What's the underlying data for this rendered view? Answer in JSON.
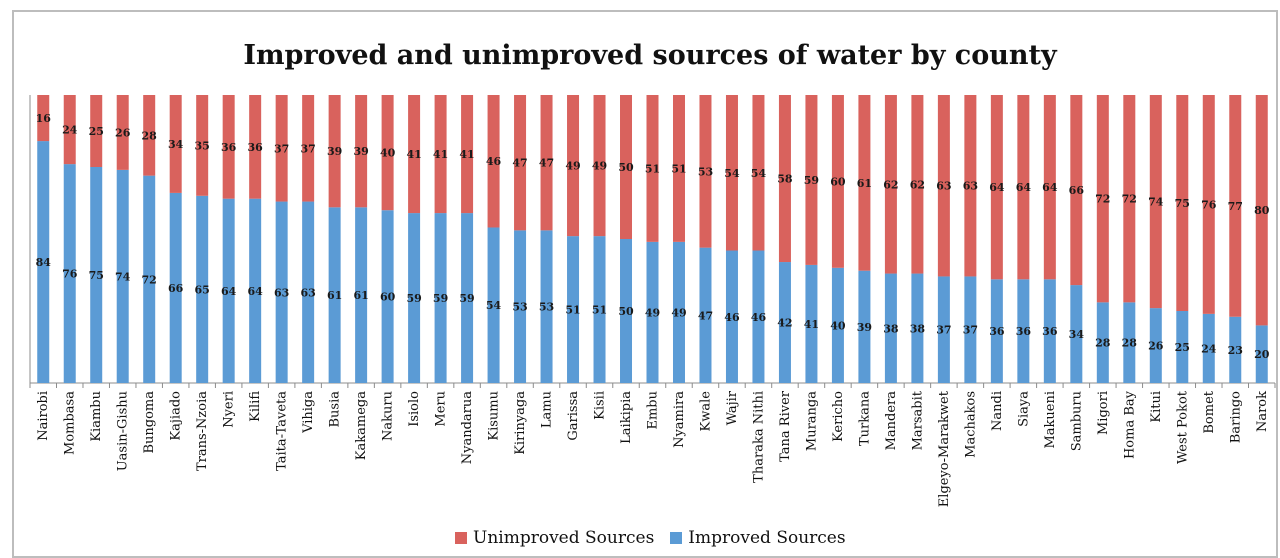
{
  "chart_data": {
    "type": "bar",
    "stacked": true,
    "title": "Improved and unimproved sources of water by county",
    "categories": [
      "Nairobi",
      "Mombasa",
      "Kiambu",
      "Uasin-Gishu",
      "Bungoma",
      "Kajiado",
      "Trans-Nzoia",
      "Nyeri",
      "Kilifi",
      "Taita-Taveta",
      "Vihiga",
      "Busia",
      "Kakamega",
      "Nakuru",
      "Isiolo",
      "Meru",
      "Nyandarua",
      "Kisumu",
      "Kirinyaga",
      "Lamu",
      "Garissa",
      "Kisii",
      "Laikipia",
      "Embu",
      "Nyamira",
      "Kwale",
      "Wajir",
      "Tharaka Nithi",
      "Tana River",
      "Muranga",
      "Kericho",
      "Turkana",
      "Mandera",
      "Marsabit",
      "Elgeyo-Marakwet",
      "Machakos",
      "Nandi",
      "Siaya",
      "Makueni",
      "Samburu",
      "Migori",
      "Homa Bay",
      "Kitui",
      "West Pokot",
      "Bomet",
      "Baringo",
      "Narok"
    ],
    "series": [
      {
        "name": "Improved Sources",
        "color": "#5b9bd5",
        "values": [
          84,
          76,
          75,
          74,
          72,
          66,
          65,
          64,
          64,
          63,
          63,
          61,
          61,
          60,
          59,
          59,
          59,
          54,
          53,
          53,
          51,
          51,
          50,
          49,
          49,
          47,
          46,
          46,
          42,
          41,
          40,
          39,
          38,
          38,
          37,
          37,
          36,
          36,
          36,
          34,
          28,
          28,
          26,
          25,
          24,
          23,
          20
        ]
      },
      {
        "name": "Unimproved Sources",
        "color": "#d9625d",
        "values": [
          16,
          24,
          25,
          26,
          28,
          34,
          35,
          36,
          36,
          37,
          37,
          39,
          39,
          40,
          41,
          41,
          41,
          46,
          47,
          47,
          49,
          49,
          50,
          51,
          51,
          53,
          54,
          54,
          58,
          59,
          60,
          61,
          62,
          62,
          63,
          63,
          64,
          64,
          64,
          66,
          72,
          72,
          74,
          75,
          76,
          77,
          80
        ]
      }
    ],
    "ylim": [
      0,
      100
    ],
    "grid": false,
    "legend_position": "bottom",
    "legend": [
      "Unimproved Sources",
      "Improved Sources"
    ]
  }
}
